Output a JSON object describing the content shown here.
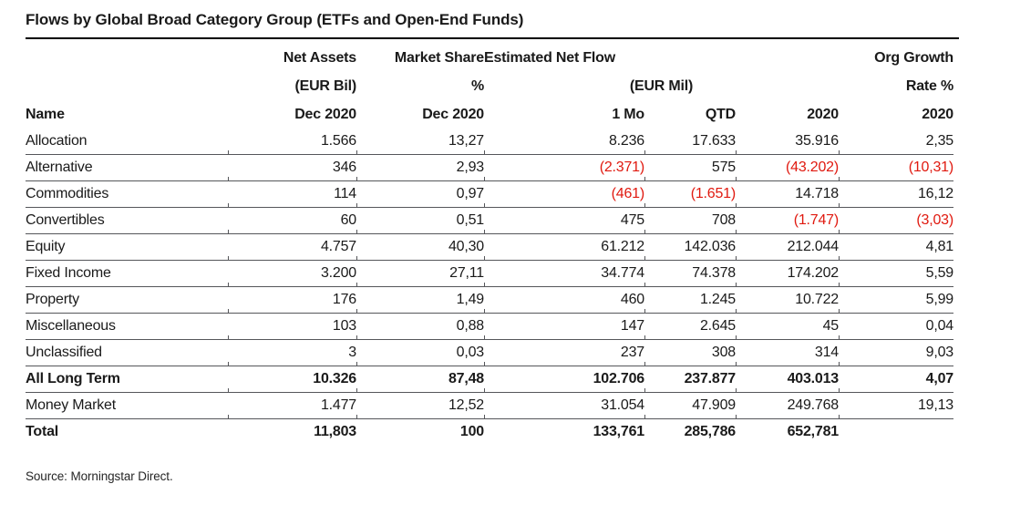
{
  "title": "Flows by Global Broad Category Group (ETFs and Open-End Funds)",
  "source_note": "Source: Morningstar Direct.",
  "colors": {
    "text": "#1a1a1a",
    "negative": "#e0190f",
    "title_rule": "#000000",
    "row_line": "#55565a"
  },
  "header": {
    "groups": {
      "net_assets": "Net Assets",
      "market_share": "Market Share",
      "est_net_flow": "Estimated Net Flow",
      "org_growth": "Org Growth"
    },
    "units": {
      "net_assets": "(EUR Bil)",
      "market_share": "%",
      "est_net_flow": "(EUR Mil)",
      "org_growth": "Rate %"
    },
    "columns": {
      "name": "Name",
      "net_assets": "Dec 2020",
      "market_share": "Dec 2020",
      "one_mo": "1 Mo",
      "qtd": "QTD",
      "year_2020": "2020",
      "org_growth_2020": "2020"
    }
  },
  "chart_data": {
    "type": "table",
    "title": "Flows by Global Broad Category Group (ETFs and Open-End Funds)",
    "columns": [
      "Name",
      "Net Assets (EUR Bil) Dec 2020",
      "Market Share % Dec 2020",
      "Estimated Net Flow (EUR Mil) 1 Mo",
      "Estimated Net Flow (EUR Mil) QTD",
      "Estimated Net Flow (EUR Mil) 2020",
      "Org Growth Rate % 2020"
    ],
    "rows": [
      {
        "name": "Allocation",
        "bold": false,
        "values": [
          "1.566",
          "13,27",
          "8.236",
          "17.633",
          "35.916",
          "2,35"
        ]
      },
      {
        "name": "Alternative",
        "bold": false,
        "values": [
          "346",
          "2,93",
          "(2.371)",
          "575",
          "(43.202)",
          "(10,31)"
        ]
      },
      {
        "name": "Commodities",
        "bold": false,
        "values": [
          "114",
          "0,97",
          "(461)",
          "(1.651)",
          "14.718",
          "16,12"
        ]
      },
      {
        "name": "Convertibles",
        "bold": false,
        "values": [
          "60",
          "0,51",
          "475",
          "708",
          "(1.747)",
          "(3,03)"
        ]
      },
      {
        "name": "Equity",
        "bold": false,
        "values": [
          "4.757",
          "40,30",
          "61.212",
          "142.036",
          "212.044",
          "4,81"
        ]
      },
      {
        "name": "Fixed Income",
        "bold": false,
        "values": [
          "3.200",
          "27,11",
          "34.774",
          "74.378",
          "174.202",
          "5,59"
        ]
      },
      {
        "name": "Property",
        "bold": false,
        "values": [
          "176",
          "1,49",
          "460",
          "1.245",
          "10.722",
          "5,99"
        ]
      },
      {
        "name": "Miscellaneous",
        "bold": false,
        "values": [
          "103",
          "0,88",
          "147",
          "2.645",
          "45",
          "0,04"
        ]
      },
      {
        "name": "Unclassified",
        "bold": false,
        "values": [
          "3",
          "0,03",
          "237",
          "308",
          "314",
          "9,03"
        ]
      },
      {
        "name": "All Long Term",
        "bold": true,
        "values": [
          "10.326",
          "87,48",
          "102.706",
          "237.877",
          "403.013",
          "4,07"
        ]
      },
      {
        "name": "Money Market",
        "bold": false,
        "values": [
          "1.477",
          "12,52",
          "31.054",
          "47.909",
          "249.768",
          "19,13"
        ]
      },
      {
        "name": "Total",
        "bold": true,
        "values": [
          "11,803",
          "100",
          "133,761",
          "285,786",
          "652,781",
          ""
        ]
      }
    ]
  }
}
